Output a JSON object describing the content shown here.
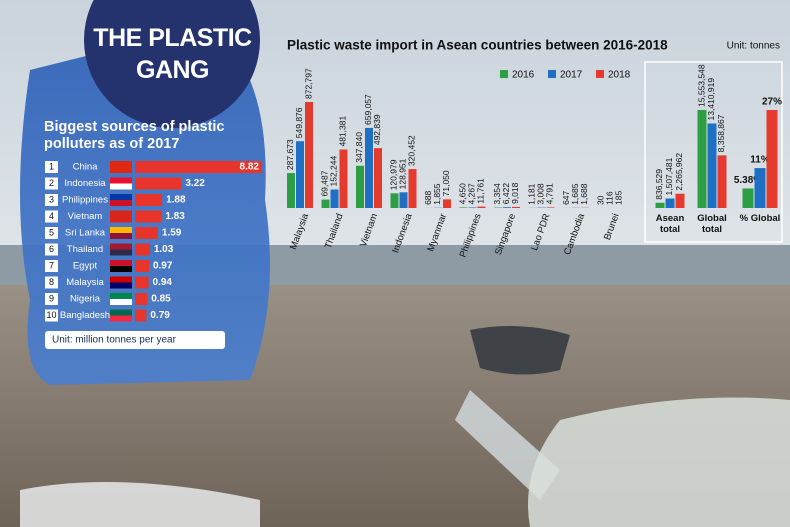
{
  "header": {
    "title": "THE PLASTIC GANG"
  },
  "chart_data": [
    {
      "type": "bar",
      "orientation": "horizontal",
      "title": "Biggest sources of plastic polluters as of 2017",
      "ranks": [
        1,
        2,
        3,
        4,
        5,
        6,
        7,
        8,
        9,
        10
      ],
      "categories": [
        "China",
        "Indonesia",
        "Philippines",
        "Vietnam",
        "Sri Lanka",
        "Thailand",
        "Egypt",
        "Malaysia",
        "Nigeria",
        "Bangladesh"
      ],
      "values": [
        8.82,
        3.22,
        1.88,
        1.83,
        1.59,
        1.03,
        0.97,
        0.94,
        0.85,
        0.79
      ],
      "color": "#e8352b",
      "note": "Unit: million tonnes per year"
    },
    {
      "type": "bar",
      "title": "Plastic waste import in Asean countries between 2016-2018",
      "unit": "Unit: tonnes",
      "categories": [
        "Malaysia",
        "Thailand",
        "Vietnam",
        "Indonesia",
        "Myanmar",
        "Philippines",
        "Singapore",
        "Lao PDR",
        "Cambodia",
        "Brunei"
      ],
      "series": [
        {
          "name": "2016",
          "color": "#2e9e45",
          "values": [
            287673,
            69487,
            347840,
            120979,
            688,
            4650,
            3354,
            1181,
            647,
            30
          ],
          "value_labels": [
            "287,673",
            "69,487",
            "347,840",
            "120,979",
            "688",
            "4,650",
            "3,354",
            "1,181",
            "647",
            "30"
          ]
        },
        {
          "name": "2017",
          "color": "#1f6fc4",
          "values": [
            549876,
            152244,
            659057,
            128951,
            1855,
            4267,
            6422,
            3008,
            1685,
            116
          ],
          "value_labels": [
            "549,876",
            "152,244",
            "659,057",
            "128,951",
            "1,855",
            "4,267",
            "6,422",
            "3,008",
            "1,685",
            "116"
          ]
        },
        {
          "name": "2018",
          "color": "#e53a2e",
          "values": [
            872797,
            481381,
            492839,
            320452,
            71050,
            11761,
            9018,
            4791,
            1688,
            185
          ],
          "value_labels": [
            "872,797",
            "481,381",
            "492,839",
            "320,452",
            "71,050",
            "11,761",
            "9,018",
            "4,791",
            "1,688",
            "185"
          ]
        }
      ]
    },
    {
      "type": "bar",
      "categories": [
        "Asean total",
        "Global total"
      ],
      "series": [
        {
          "color": "#2e9e45",
          "values": [
            836529,
            15553548
          ],
          "value_labels": [
            "836,529",
            "15,553,548"
          ]
        },
        {
          "color": "#1f6fc4",
          "values": [
            1507481,
            13410919
          ],
          "value_labels": [
            "1,507,481",
            "13,410,919"
          ]
        },
        {
          "color": "#e53a2e",
          "values": [
            2265962,
            8358867
          ],
          "value_labels": [
            "2,265,962",
            "8,358,867"
          ]
        }
      ]
    },
    {
      "type": "bar",
      "categories": [
        "% Global"
      ],
      "series": [
        {
          "color": "#2e9e45",
          "values": [
            5.38
          ],
          "value_labels": [
            "5.38%"
          ]
        },
        {
          "color": "#1f6fc4",
          "values": [
            11
          ],
          "value_labels": [
            "11%"
          ]
        },
        {
          "color": "#e53a2e",
          "values": [
            27
          ],
          "value_labels": [
            "27%"
          ]
        }
      ]
    }
  ]
}
